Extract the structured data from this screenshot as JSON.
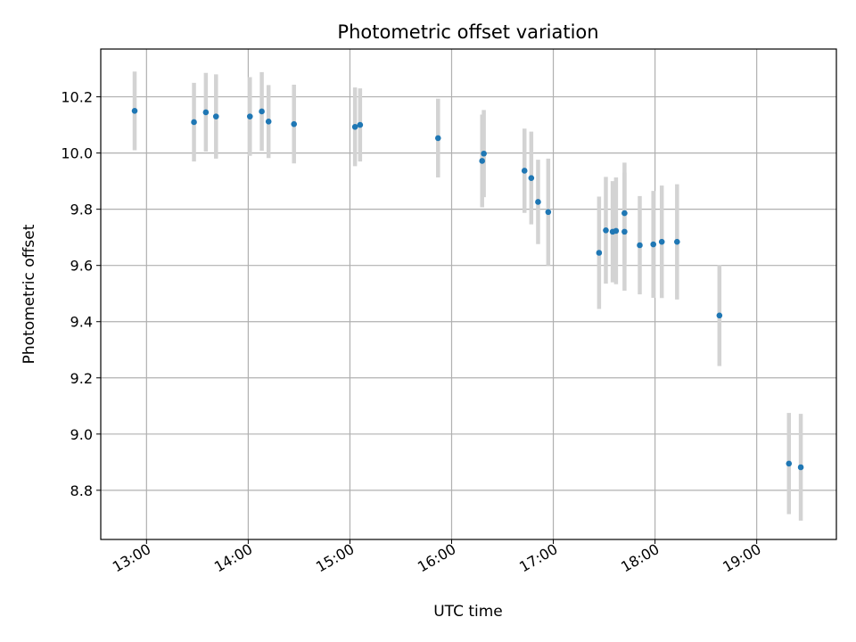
{
  "chart_data": {
    "type": "scatter",
    "title": "Photometric offset variation",
    "xlabel": "UTC time",
    "ylabel": "Photometric offset",
    "x_tick_labels": [
      "13:00",
      "14:00",
      "15:00",
      "16:00",
      "17:00",
      "18:00",
      "19:00"
    ],
    "x_ticks_hours": [
      13,
      14,
      15,
      16,
      17,
      18,
      19
    ],
    "y_tick_labels": [
      "8.8",
      "9.0",
      "9.2",
      "9.4",
      "9.6",
      "9.8",
      "10.0",
      "10.2"
    ],
    "y_ticks": [
      8.8,
      9.0,
      9.2,
      9.4,
      9.6,
      9.8,
      10.0,
      10.2
    ],
    "xlim": [
      "12:33",
      "19:47"
    ],
    "ylim": [
      8.625,
      10.37
    ],
    "grid": true,
    "point_color": "#1f77b4",
    "errorbar_color": "#d3d3d3",
    "points": [
      {
        "x": "12:53",
        "y": 10.15,
        "err": 0.14
      },
      {
        "x": "13:28",
        "y": 10.11,
        "err": 0.14
      },
      {
        "x": "13:35",
        "y": 10.145,
        "err": 0.14
      },
      {
        "x": "13:41",
        "y": 10.13,
        "err": 0.15
      },
      {
        "x": "14:01",
        "y": 10.13,
        "err": 0.14
      },
      {
        "x": "14:08",
        "y": 10.148,
        "err": 0.14
      },
      {
        "x": "14:12",
        "y": 10.112,
        "err": 0.13
      },
      {
        "x": "14:27",
        "y": 10.103,
        "err": 0.14
      },
      {
        "x": "15:03",
        "y": 10.093,
        "err": 0.14
      },
      {
        "x": "15:06",
        "y": 10.1,
        "err": 0.13
      },
      {
        "x": "15:52",
        "y": 10.053,
        "err": 0.14
      },
      {
        "x": "16:18",
        "y": 9.972,
        "err": 0.165
      },
      {
        "x": "16:19",
        "y": 9.998,
        "err": 0.155
      },
      {
        "x": "16:43",
        "y": 9.937,
        "err": 0.15
      },
      {
        "x": "16:47",
        "y": 9.911,
        "err": 0.165
      },
      {
        "x": "16:51",
        "y": 9.826,
        "err": 0.15
      },
      {
        "x": "16:57",
        "y": 9.79,
        "err": 0.19
      },
      {
        "x": "17:27",
        "y": 9.645,
        "err": 0.2
      },
      {
        "x": "17:31",
        "y": 9.725,
        "err": 0.19
      },
      {
        "x": "17:35",
        "y": 9.72,
        "err": 0.18
      },
      {
        "x": "17:37",
        "y": 9.723,
        "err": 0.19
      },
      {
        "x": "17:42",
        "y": 9.786,
        "err": 0.18
      },
      {
        "x": "17:42",
        "y": 9.72,
        "err": 0.21
      },
      {
        "x": "17:51",
        "y": 9.672,
        "err": 0.175
      },
      {
        "x": "17:59",
        "y": 9.675,
        "err": 0.19
      },
      {
        "x": "18:04",
        "y": 9.684,
        "err": 0.2
      },
      {
        "x": "18:13",
        "y": 9.684,
        "err": 0.205
      },
      {
        "x": "18:38",
        "y": 9.422,
        "err": 0.18
      },
      {
        "x": "19:19",
        "y": 8.895,
        "err": 0.18
      },
      {
        "x": "19:26",
        "y": 8.882,
        "err": 0.19
      }
    ]
  }
}
